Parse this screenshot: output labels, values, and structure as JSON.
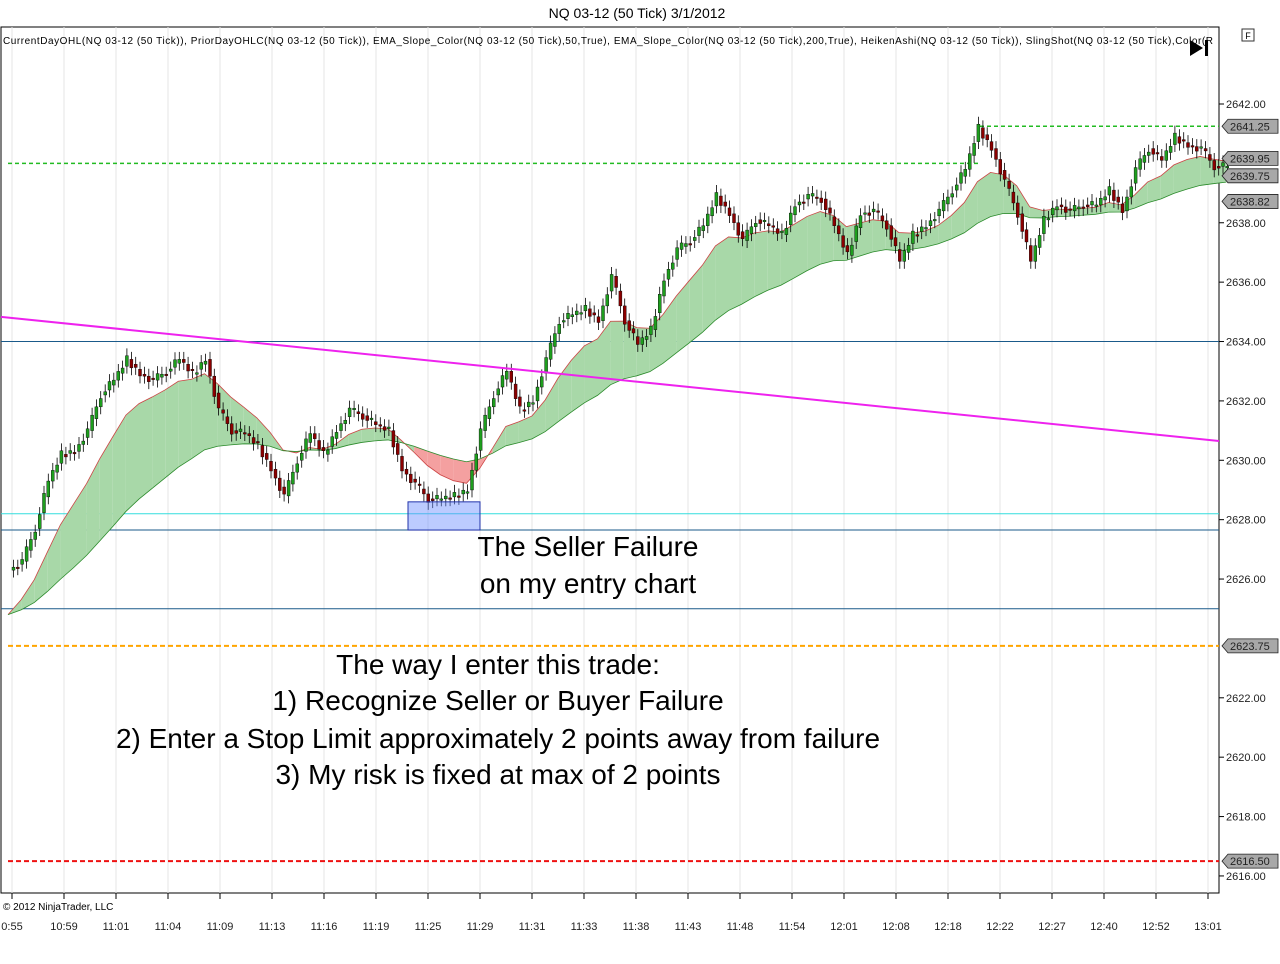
{
  "window": {
    "title": "NQ 03-12 (50 Tick)  3/1/2012"
  },
  "indicators_text": "CurrentDayOHL(NQ 03-12 (50 Tick)), PriorDayOHLC(NQ 03-12 (50 Tick)), EMA_Slope_Color(NQ 03-12 (50 Tick),50,True), EMA_Slope_Color(NQ 03-12 (50 Tick),200,True), HeikenAshi(NQ 03-12 (50 Tick)), SlingShot(NQ 03-12 (50 Tick),Color(R",
  "f_button": "F",
  "copyright": "© 2012 NinjaTrader, LLC",
  "annotations": {
    "seller_failure": [
      "The Seller Failure",
      "on my entry chart"
    ],
    "instructions": [
      "The way I enter this trade:",
      "1) Recognize Seller or Buyer Failure",
      "2) Enter a Stop Limit approximately 2 points away from failure",
      "3) My risk is fixed at max of 2 points"
    ]
  },
  "chart_data": {
    "type": "candlestick",
    "title": "NQ 03-12 (50 Tick)  3/1/2012",
    "ylim": [
      2615,
      2644.5
    ],
    "y_ticks": [
      "2642.00",
      "2638.00",
      "2636.00",
      "2634.00",
      "2632.00",
      "2630.00",
      "2628.00",
      "2626.00",
      "2622.00",
      "2620.00",
      "2618.00",
      "2616.00"
    ],
    "x_ticks": [
      "0:55",
      "10:59",
      "11:01",
      "11:04",
      "11:09",
      "11:13",
      "11:16",
      "11:19",
      "11:25",
      "11:29",
      "11:31",
      "11:33",
      "11:38",
      "11:43",
      "11:48",
      "11:54",
      "12:01",
      "12:08",
      "12:18",
      "12:22",
      "12:27",
      "12:40",
      "12:52",
      "13:01"
    ],
    "grid": true,
    "close": [
      2626.3,
      2626.6,
      2627.7,
      2629.3,
      2630.2,
      2630.3,
      2631.0,
      2632.2,
      2632.7,
      2633.4,
      2632.9,
      2632.7,
      2633.0,
      2633.4,
      2632.9,
      2633.4,
      2631.7,
      2631.0,
      2630.9,
      2630.5,
      2629.7,
      2628.8,
      2630.0,
      2630.9,
      2630.2,
      2631.0,
      2631.7,
      2631.5,
      2631.2,
      2631.0,
      2629.7,
      2629.2,
      2628.7,
      2628.7,
      2628.8,
      2629.0,
      2631.0,
      2632.2,
      2633.0,
      2631.7,
      2632.0,
      2633.4,
      2634.7,
      2634.9,
      2635.1,
      2634.7,
      2636.2,
      2634.7,
      2633.9,
      2634.4,
      2636.1,
      2637.1,
      2637.4,
      2637.9,
      2638.9,
      2638.3,
      2637.4,
      2638.1,
      2637.9,
      2637.6,
      2638.6,
      2638.9,
      2638.8,
      2637.9,
      2636.9,
      2638.3,
      2638.4,
      2637.9,
      2636.7,
      2637.6,
      2637.9,
      2638.4,
      2639.1,
      2639.8,
      2641.2,
      2640.5,
      2639.4,
      2638.3,
      2636.7,
      2638.1,
      2638.6,
      2638.4,
      2638.6,
      2638.6,
      2639.1,
      2638.4,
      2639.8,
      2640.5,
      2640.1,
      2640.9,
      2640.6,
      2640.5,
      2639.9,
      2639.9
    ],
    "price_labels": [
      {
        "value": "2641.25"
      },
      {
        "value": "2639.95"
      },
      {
        "value": "2639.75"
      },
      {
        "value": "2638.82"
      },
      {
        "value": "2623.75"
      },
      {
        "value": "2616.50"
      }
    ],
    "levels": [
      {
        "name": "prior-high",
        "price": 2640.0,
        "color": "#22bb22",
        "style": "dashed"
      },
      {
        "name": "current-high",
        "price": 2641.25,
        "color": "#22bb22",
        "style": "dashed"
      },
      {
        "name": "level-2634",
        "price": 2634.0,
        "color": "#1a5a8a",
        "style": "solid"
      },
      {
        "name": "cyan-level",
        "price": 2628.2,
        "color": "#33dddd",
        "style": "solid"
      },
      {
        "name": "level-2627",
        "price": 2627.65,
        "color": "#1a5a8a",
        "style": "solid"
      },
      {
        "name": "level-2625",
        "price": 2625.0,
        "color": "#1a5a8a",
        "style": "solid"
      },
      {
        "name": "orange-level",
        "price": 2623.75,
        "color": "#ffa500",
        "style": "dashed"
      },
      {
        "name": "red-level",
        "price": 2616.5,
        "color": "#ee1111",
        "style": "dashed"
      }
    ],
    "trendline": {
      "from": 2634.83,
      "to": 2630.65,
      "color": "#ee22ee"
    },
    "failure_box": {
      "price_low": 2627.65,
      "price_high": 2628.6,
      "from_time": "11:25",
      "color": "#6a8cff"
    },
    "colors": {
      "up": "#1e9e1e",
      "down": "#8b0000",
      "band_up": "#a8d8a8",
      "band_down": "#f4a0a0"
    }
  }
}
